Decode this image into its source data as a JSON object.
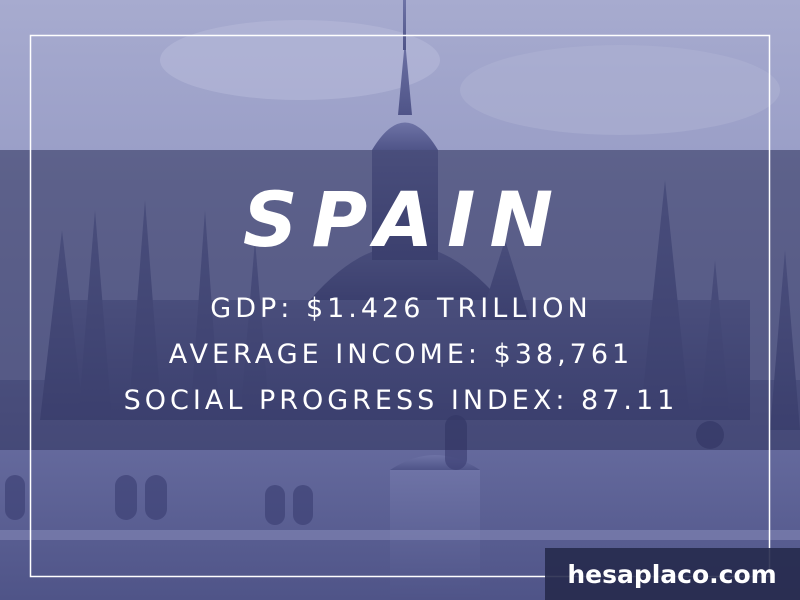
{
  "title": "SPAIN",
  "stats": [
    "GDP: $1.426 TRILLION",
    "AVERAGE INCOME: $38,761",
    "SOCIAL PROGRESS INDEX: 87.11"
  ],
  "watermark": "hesaplaco.com"
}
